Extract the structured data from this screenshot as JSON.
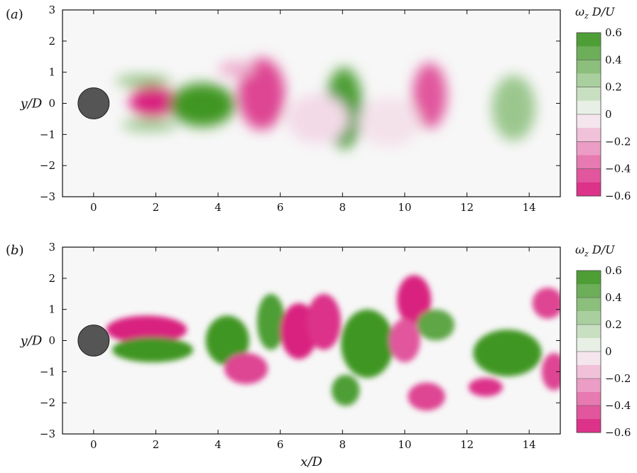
{
  "chart_data": [
    {
      "type": "heatmap",
      "panel_label": "(a)",
      "xlabel": "",
      "ylabel": "y/D",
      "xlim": [
        -1,
        15
      ],
      "ylim": [
        -3,
        3
      ],
      "x_ticks": [
        0,
        2,
        4,
        6,
        8,
        10,
        12,
        14
      ],
      "y_ticks": [
        -3,
        -2,
        -1,
        0,
        1,
        2,
        3
      ],
      "colorbar": {
        "title": "ω_z D/U",
        "range": [
          -0.6,
          0.6
        ],
        "ticks": [
          -0.6,
          -0.4,
          -0.2,
          0,
          0.2,
          0.4,
          0.6
        ],
        "tick_labels": [
          "−0.6",
          "−0.4",
          "−0.2",
          "0",
          "0.2",
          "0.4",
          "0.6"
        ],
        "colors": {
          "negative": "#d9207f",
          "zero": "#f7f7f7",
          "positive": "#3f9624"
        }
      },
      "cylinder": {
        "center": [
          0,
          0
        ],
        "diameter": 1,
        "color": "#555555"
      },
      "vortices": [
        {
          "x": 1.9,
          "y": 0.05,
          "rx": 0.75,
          "ry": 0.5,
          "value": -0.6
        },
        {
          "x": 3.5,
          "y": -0.05,
          "rx": 1.05,
          "ry": 0.7,
          "value": 0.6
        },
        {
          "x": 1.6,
          "y": 0.72,
          "rx": 0.9,
          "ry": 0.18,
          "value": 0.35
        },
        {
          "x": 1.8,
          "y": -0.7,
          "rx": 0.9,
          "ry": 0.2,
          "value": 0.3
        },
        {
          "x": 5.4,
          "y": 0.3,
          "rx": 0.75,
          "ry": 1.15,
          "value": -0.5
        },
        {
          "x": 4.6,
          "y": 1.1,
          "rx": 0.6,
          "ry": 0.25,
          "value": -0.2
        },
        {
          "x": 8.05,
          "y": -0.15,
          "rx": 0.6,
          "ry": 1.3,
          "value": 0.55
        },
        {
          "x": 10.8,
          "y": 0.25,
          "rx": 0.55,
          "ry": 1.05,
          "value": -0.45
        },
        {
          "x": 13.5,
          "y": -0.15,
          "rx": 0.7,
          "ry": 1.05,
          "value": 0.3
        },
        {
          "x": 7.2,
          "y": -0.5,
          "rx": 1.0,
          "ry": 0.8,
          "value": -0.08
        },
        {
          "x": 9.5,
          "y": -0.6,
          "rx": 1.0,
          "ry": 0.8,
          "value": -0.06
        }
      ]
    },
    {
      "type": "heatmap",
      "panel_label": "(b)",
      "xlabel": "x/D",
      "ylabel": "y/D",
      "xlim": [
        -1,
        15
      ],
      "ylim": [
        -3,
        3
      ],
      "x_ticks": [
        0,
        2,
        4,
        6,
        8,
        10,
        12,
        14
      ],
      "y_ticks": [
        -3,
        -2,
        -1,
        0,
        1,
        2,
        3
      ],
      "colorbar": {
        "title": "ω_z D/U",
        "range": [
          -0.6,
          0.6
        ],
        "ticks": [
          -0.6,
          -0.4,
          -0.2,
          0,
          0.2,
          0.4,
          0.6
        ],
        "tick_labels": [
          "−0.6",
          "−0.4",
          "−0.2",
          "0",
          "0.2",
          "0.4",
          "0.6"
        ],
        "colors": {
          "negative": "#d9207f",
          "zero": "#f7f7f7",
          "positive": "#3f9624"
        }
      },
      "cylinder": {
        "center": [
          0,
          0
        ],
        "diameter": 1,
        "color": "#555555"
      },
      "vortices": [
        {
          "x": 1.7,
          "y": 0.35,
          "rx": 1.3,
          "ry": 0.45,
          "value": -0.6
        },
        {
          "x": 1.9,
          "y": -0.3,
          "rx": 1.3,
          "ry": 0.4,
          "value": 0.6
        },
        {
          "x": 4.3,
          "y": 0.0,
          "rx": 0.7,
          "ry": 0.8,
          "value": 0.6
        },
        {
          "x": 4.9,
          "y": -0.9,
          "rx": 0.7,
          "ry": 0.5,
          "value": -0.5
        },
        {
          "x": 5.7,
          "y": 0.6,
          "rx": 0.45,
          "ry": 0.9,
          "value": 0.55
        },
        {
          "x": 6.6,
          "y": 0.3,
          "rx": 0.6,
          "ry": 0.9,
          "value": -0.6
        },
        {
          "x": 7.4,
          "y": 0.6,
          "rx": 0.55,
          "ry": 0.9,
          "value": -0.55
        },
        {
          "x": 8.8,
          "y": -0.1,
          "rx": 0.85,
          "ry": 1.1,
          "value": 0.6
        },
        {
          "x": 8.1,
          "y": -1.6,
          "rx": 0.45,
          "ry": 0.5,
          "value": 0.55
        },
        {
          "x": 10.3,
          "y": 1.3,
          "rx": 0.55,
          "ry": 0.8,
          "value": -0.6
        },
        {
          "x": 11.0,
          "y": 0.5,
          "rx": 0.6,
          "ry": 0.5,
          "value": 0.5
        },
        {
          "x": 10.0,
          "y": 0.0,
          "rx": 0.5,
          "ry": 0.7,
          "value": -0.45
        },
        {
          "x": 10.7,
          "y": -1.8,
          "rx": 0.6,
          "ry": 0.45,
          "value": -0.5
        },
        {
          "x": 13.3,
          "y": -0.4,
          "rx": 1.1,
          "ry": 0.75,
          "value": 0.6
        },
        {
          "x": 12.6,
          "y": -1.5,
          "rx": 0.55,
          "ry": 0.3,
          "value": -0.55
        },
        {
          "x": 14.6,
          "y": 1.2,
          "rx": 0.5,
          "ry": 0.5,
          "value": -0.5
        },
        {
          "x": 14.8,
          "y": -1.0,
          "rx": 0.4,
          "ry": 0.6,
          "value": -0.5
        }
      ]
    }
  ]
}
